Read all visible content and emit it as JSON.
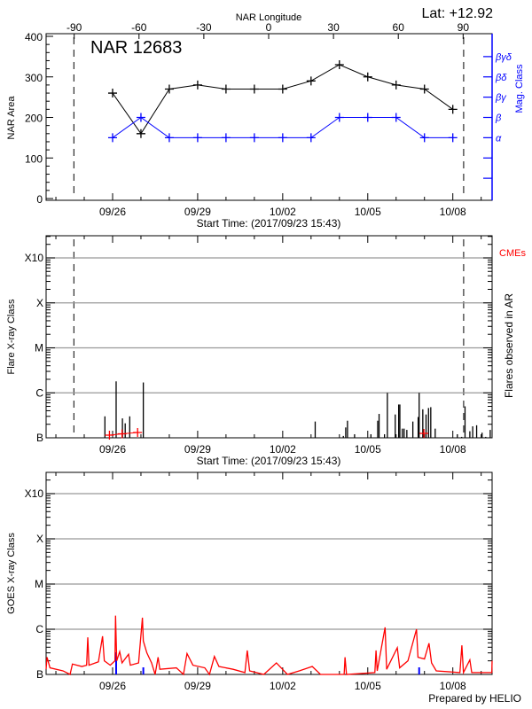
{
  "header": {
    "lat_label": "Lat: +12.92"
  },
  "footer": {
    "credit": "Prepared by HELIO"
  },
  "colors": {
    "area": "#000000",
    "mag_class": "#0000ff",
    "goes": "#ff0000",
    "cme": "#ff0000",
    "grid": "#999999",
    "flare": "#000000"
  },
  "chart_data": [
    {
      "type": "line",
      "title": "NAR 12683",
      "top_axis_label": "NAR Longitude",
      "top_ticks": [
        -90,
        -60,
        -30,
        0,
        30,
        60,
        90
      ],
      "xlabel": "Start Time: (2017/09/23 15:43)",
      "ylabel": "NAR Area",
      "y2label": "Mag. Class",
      "x_range": [
        "2017-09-23T15:43",
        "2017-10-09T09:15"
      ],
      "x_ticks": [
        {
          "date": "2017-09-26T00:00",
          "label": "09/26"
        },
        {
          "date": "2017-09-29T00:00",
          "label": "09/29"
        },
        {
          "date": "2017-10-02T00:00",
          "label": "10/02"
        },
        {
          "date": "2017-10-05T00:00",
          "label": "10/05"
        },
        {
          "date": "2017-10-08T00:00",
          "label": "10/08"
        }
      ],
      "ylim": [
        0,
        400
      ],
      "yticks": [
        0,
        100,
        200,
        300,
        400
      ],
      "limb_crossings": [
        "2017-09-24T15:13",
        "2017-10-08T09:10"
      ],
      "mag_class_levels": [
        "α",
        "β",
        "βγ",
        "βδ",
        "βγδ"
      ],
      "dates": [
        "2017-09-26T00:00",
        "2017-09-27T00:00",
        "2017-09-28T00:00",
        "2017-09-29T00:00",
        "2017-09-30T00:00",
        "2017-10-01T00:00",
        "2017-10-02T00:00",
        "2017-10-03T00:00",
        "2017-10-04T00:00",
        "2017-10-05T00:00",
        "2017-10-06T00:00",
        "2017-10-07T00:00",
        "2017-10-08T00:00"
      ],
      "series": [
        {
          "values": [
            260,
            160,
            270,
            280,
            270,
            270,
            270,
            290,
            330,
            300,
            280,
            270,
            220
          ]
        },
        {
          "values": [
            "α",
            "β",
            "α",
            "α",
            "α",
            "α",
            "α",
            "α",
            "β",
            "β",
            "β",
            "α",
            "α"
          ]
        }
      ]
    },
    {
      "type": "bar",
      "xlabel": "Start Time: (2017/09/23 15:43)",
      "ylabel": "Flare X-ray Class",
      "y2label": "Flares observed in AR",
      "legend": "CMEs",
      "y_scale": "log",
      "ytick_labels": [
        "B",
        "C",
        "M",
        "X",
        "X10"
      ],
      "grid": true,
      "flares": [
        [
          "2017-09-25T17:30",
          "B3.0"
        ],
        [
          "2017-09-26T03:00",
          "C1.8"
        ],
        [
          "2017-09-26T08:20",
          "B2.7"
        ],
        [
          "2017-09-26T10:40",
          "B2.1"
        ],
        [
          "2017-09-26T14:30",
          "B3.0"
        ],
        [
          "2017-09-27T02:00",
          "C1.7"
        ],
        [
          "2017-10-03T03:30",
          "B2.3"
        ],
        [
          "2017-10-04T03:20",
          "B1.1"
        ],
        [
          "2017-10-04T05:20",
          "B1.7"
        ],
        [
          "2017-10-04T06:50",
          "B2.4"
        ],
        [
          "2017-10-04T12:50",
          "B1.2"
        ],
        [
          "2017-10-05T02:40",
          "B1.2"
        ],
        [
          "2017-10-05T08:25",
          "B2.4"
        ],
        [
          "2017-10-05T09:35",
          "B3.4"
        ],
        [
          "2017-10-05T14:10",
          "B1.2"
        ],
        [
          "2017-10-05T16:35",
          "C1.0"
        ],
        [
          "2017-10-05T23:15",
          "B3.3"
        ],
        [
          "2017-10-06T02:10",
          "B5.5"
        ],
        [
          "2017-10-06T03:10",
          "B5.5"
        ],
        [
          "2017-10-06T05:15",
          "B1.6"
        ],
        [
          "2017-10-06T06:45",
          "B1.6"
        ],
        [
          "2017-10-06T09:05",
          "B1.5"
        ],
        [
          "2017-10-06T14:10",
          "B2.3"
        ],
        [
          "2017-10-06T18:40",
          "B2.9"
        ],
        [
          "2017-10-06T19:30",
          "C1.0"
        ],
        [
          "2017-10-06T22:35",
          "B4.3"
        ],
        [
          "2017-10-07T01:20",
          "B3.3"
        ],
        [
          "2017-10-07T03:25",
          "B4.6"
        ],
        [
          "2017-10-07T05:20",
          "B4.8"
        ],
        [
          "2017-10-07T09:05",
          "B1.6"
        ],
        [
          "2017-10-08T03:50",
          "B1.2"
        ],
        [
          "2017-10-08T07:30",
          "B1.05"
        ],
        [
          "2017-10-08T10:20",
          "B5.0"
        ],
        [
          "2017-10-08T14:25",
          "B1.4"
        ],
        [
          "2017-10-08T16:50",
          "B1.8"
        ],
        [
          "2017-10-08T20:10",
          "B1.9"
        ],
        [
          "2017-10-09T00:45",
          "B1.3"
        ],
        [
          "2017-10-09T03:50",
          "B1.05"
        ],
        [
          "2017-10-09T07:40",
          "B1.5"
        ]
      ],
      "cmes": [
        "2017-09-25T21:20",
        "2017-09-26T08:00",
        "2017-09-26T21:10",
        "2017-10-06T23:30"
      ]
    },
    {
      "type": "line",
      "ylabel": "GOES X-ray Class",
      "y_scale": "log",
      "ytick_labels": [
        "B",
        "C",
        "M",
        "X",
        "X10"
      ],
      "grid": true,
      "blue_markers": [
        "2017-09-26T03:00",
        "2017-09-27T02:00",
        "2017-10-06T19:30"
      ],
      "goes_flux": [
        [
          "2017-09-23T15:43",
          "B1.3"
        ],
        [
          "2017-09-23T16:30",
          "B2.4"
        ],
        [
          "2017-09-23T19:00",
          "B1.4"
        ],
        [
          "2017-09-24T06:00",
          "B1.2"
        ],
        [
          "2017-09-24T12:00",
          "B1.0"
        ],
        [
          "2017-09-24T14:00",
          "B1.7"
        ],
        [
          "2017-09-24T22:00",
          "B1.5"
        ],
        [
          "2017-09-25T02:00",
          "B1.6"
        ],
        [
          "2017-09-25T03:00",
          "B6.6"
        ],
        [
          "2017-09-25T04:00",
          "B1.6"
        ],
        [
          "2017-09-25T12:00",
          "B1.9"
        ],
        [
          "2017-09-25T15:30",
          "B7.0"
        ],
        [
          "2017-09-25T17:00",
          "B2.0"
        ],
        [
          "2017-09-25T22:00",
          "B1.6"
        ],
        [
          "2017-09-26T02:00",
          "B2.0"
        ],
        [
          "2017-09-26T02:30",
          "C2.0"
        ],
        [
          "2017-09-26T03:30",
          "B2.0"
        ],
        [
          "2017-09-26T06:00",
          "B3.2"
        ],
        [
          "2017-09-26T08:00",
          "B1.8"
        ],
        [
          "2017-09-26T13:30",
          "B2.8"
        ],
        [
          "2017-09-26T15:00",
          "B1.6"
        ],
        [
          "2017-09-26T22:00",
          "B1.8"
        ],
        [
          "2017-09-27T01:15",
          "C1.8"
        ],
        [
          "2017-09-27T02:00",
          "B5.5"
        ],
        [
          "2017-09-27T05:00",
          "B3.0"
        ],
        [
          "2017-09-27T09:00",
          "B1.8"
        ],
        [
          "2017-09-27T12:00",
          "B1.0"
        ],
        [
          "2017-09-27T14:30",
          "B2.4"
        ],
        [
          "2017-09-27T16:00",
          "B1.3"
        ],
        [
          "2017-09-28T06:00",
          "B1.4"
        ],
        [
          "2017-09-28T12:00",
          "B1.0"
        ],
        [
          "2017-09-28T15:00",
          "B2.9"
        ],
        [
          "2017-09-28T20:00",
          "B1.6"
        ],
        [
          "2017-09-29T06:00",
          "B1.4"
        ],
        [
          "2017-09-29T10:00",
          "B1.0"
        ],
        [
          "2017-09-29T14:10",
          "B2.5"
        ],
        [
          "2017-09-29T18:00",
          "B1.5"
        ],
        [
          "2017-09-30T06:00",
          "B1.3"
        ],
        [
          "2017-09-30T16:00",
          "B1.1"
        ],
        [
          "2017-09-30T18:00",
          "B3.4"
        ],
        [
          "2017-09-30T20:00",
          "B1.2"
        ],
        [
          "2017-10-01T08:00",
          "B1.0"
        ],
        [
          "2017-10-01T18:40",
          "B1.8"
        ],
        [
          "2017-10-02T04:00",
          "B1.0"
        ],
        [
          "2017-10-02T14:00",
          "B1.2"
        ],
        [
          "2017-10-03T01:00",
          "B1.5"
        ],
        [
          "2017-10-03T08:00",
          "B1.0"
        ],
        [
          "2017-10-04T04:00",
          "B1.0"
        ],
        [
          "2017-10-04T04:45",
          "B2.4"
        ],
        [
          "2017-10-04T06:00",
          "B1.0"
        ],
        [
          "2017-10-05T06:00",
          "B1.1"
        ],
        [
          "2017-10-05T07:00",
          "B3.4"
        ],
        [
          "2017-10-05T08:00",
          "B1.2"
        ],
        [
          "2017-10-05T14:40",
          "C1.1"
        ],
        [
          "2017-10-05T16:00",
          "B1.3"
        ],
        [
          "2017-10-06T01:00",
          "B3.9"
        ],
        [
          "2017-10-06T03:00",
          "B1.4"
        ],
        [
          "2017-10-06T10:00",
          "B2.0"
        ],
        [
          "2017-10-06T17:15",
          "C1.0"
        ],
        [
          "2017-10-06T18:30",
          "B2.4"
        ],
        [
          "2017-10-07T00:00",
          "B2.2"
        ],
        [
          "2017-10-07T03:50",
          "B4.9"
        ],
        [
          "2017-10-07T06:00",
          "B1.8"
        ],
        [
          "2017-10-07T10:00",
          "B1.2"
        ],
        [
          "2017-10-08T06:00",
          "B1.1"
        ],
        [
          "2017-10-08T07:40",
          "B4.4"
        ],
        [
          "2017-10-08T09:00",
          "B1.1"
        ],
        [
          "2017-10-08T14:25",
          "B2.1"
        ],
        [
          "2017-10-08T16:00",
          "B1.1"
        ],
        [
          "2017-10-09T09:00",
          "B1.1"
        ],
        [
          "2017-10-09T09:15",
          "B2.0"
        ]
      ]
    }
  ]
}
